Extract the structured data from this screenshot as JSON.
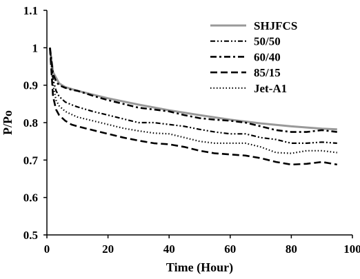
{
  "chart_data": {
    "type": "line",
    "xlabel": "Time (Hour)",
    "ylabel": "P/Po",
    "xlim": [
      0,
      100
    ],
    "ylim": [
      0.5,
      1.1
    ],
    "xticks": [
      0,
      20,
      40,
      60,
      80,
      100
    ],
    "yticks": [
      0.5,
      0.6,
      0.7,
      0.8,
      0.9,
      1.0,
      1.1
    ],
    "xtick_labels": [
      "0",
      "20",
      "40",
      "60",
      "80",
      "100"
    ],
    "ytick_labels": [
      "0.5",
      "0.6",
      "0.7",
      "0.8",
      "0.9",
      "1",
      "1.1"
    ],
    "grid": false,
    "legend_position": "top-right",
    "series": [
      {
        "name": "SHJFCS",
        "style": "solid",
        "color": "#999999",
        "x": [
          1,
          2,
          3,
          4,
          6,
          8,
          10,
          15,
          20,
          30,
          40,
          50,
          60,
          70,
          80,
          90,
          95
        ],
        "y": [
          1.0,
          0.935,
          0.92,
          0.905,
          0.895,
          0.89,
          0.885,
          0.875,
          0.865,
          0.848,
          0.833,
          0.82,
          0.808,
          0.798,
          0.79,
          0.784,
          0.782
        ]
      },
      {
        "name": "50/50",
        "style": "dash-dot-dot",
        "color": "#000000",
        "x": [
          1,
          2,
          3,
          4,
          6,
          8,
          10,
          15,
          20,
          25,
          30,
          35,
          40,
          45,
          50,
          55,
          60,
          65,
          70,
          75,
          80,
          85,
          90,
          95
        ],
        "y": [
          1.0,
          0.915,
          0.885,
          0.87,
          0.855,
          0.848,
          0.842,
          0.83,
          0.82,
          0.81,
          0.8,
          0.8,
          0.795,
          0.79,
          0.782,
          0.775,
          0.77,
          0.77,
          0.76,
          0.755,
          0.745,
          0.745,
          0.748,
          0.745
        ]
      },
      {
        "name": "60/40",
        "style": "dash-dot",
        "color": "#000000",
        "x": [
          1,
          2,
          3,
          4,
          6,
          8,
          10,
          15,
          20,
          25,
          30,
          35,
          40,
          45,
          50,
          55,
          60,
          65,
          70,
          75,
          80,
          85,
          90,
          95
        ],
        "y": [
          1.0,
          0.93,
          0.91,
          0.9,
          0.893,
          0.888,
          0.885,
          0.872,
          0.86,
          0.85,
          0.84,
          0.835,
          0.83,
          0.82,
          0.812,
          0.808,
          0.805,
          0.8,
          0.79,
          0.78,
          0.775,
          0.775,
          0.78,
          0.775
        ]
      },
      {
        "name": "85/15",
        "style": "dash",
        "color": "#000000",
        "x": [
          1,
          2,
          3,
          4,
          6,
          8,
          10,
          15,
          20,
          25,
          30,
          35,
          40,
          45,
          50,
          55,
          60,
          65,
          70,
          75,
          80,
          85,
          90,
          95
        ],
        "y": [
          1.0,
          0.87,
          0.835,
          0.82,
          0.805,
          0.795,
          0.79,
          0.78,
          0.77,
          0.76,
          0.752,
          0.745,
          0.742,
          0.735,
          0.725,
          0.718,
          0.715,
          0.712,
          0.705,
          0.695,
          0.688,
          0.69,
          0.695,
          0.688
        ]
      },
      {
        "name": "Jet-A1",
        "style": "dotted",
        "color": "#000000",
        "x": [
          1,
          2,
          3,
          4,
          6,
          8,
          10,
          15,
          20,
          25,
          30,
          35,
          40,
          45,
          50,
          55,
          60,
          65,
          70,
          75,
          80,
          85,
          90,
          95
        ],
        "y": [
          1.0,
          0.9,
          0.86,
          0.845,
          0.83,
          0.822,
          0.815,
          0.805,
          0.795,
          0.785,
          0.778,
          0.772,
          0.77,
          0.76,
          0.75,
          0.745,
          0.745,
          0.745,
          0.735,
          0.72,
          0.718,
          0.725,
          0.725,
          0.72
        ]
      }
    ]
  }
}
